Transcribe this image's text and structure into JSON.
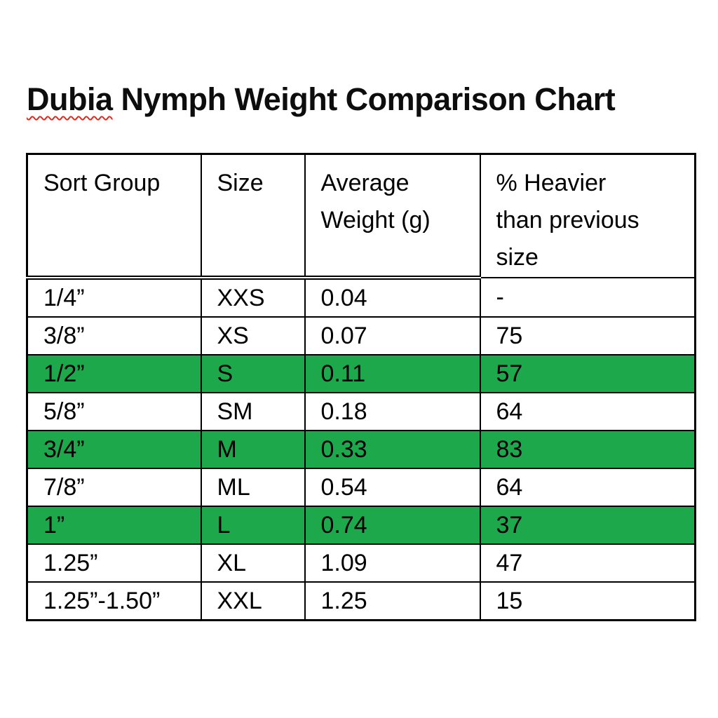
{
  "title": {
    "misspelled_word": "Dubia",
    "rest": " Nymph Weight Comparison Chart",
    "spellcheck_underline": "red-wavy"
  },
  "colors": {
    "highlight_green": "#1ea84c",
    "squiggle_red": "#e02b20",
    "border_black": "#000000",
    "text_black": "#000000",
    "page_background": "#ffffff"
  },
  "table": {
    "columns": [
      "Sort Group",
      "Size",
      "Average Weight (g)",
      "% Heavier than previous size"
    ],
    "rows": [
      {
        "sort_group": "1/4”",
        "size": "XXS",
        "avg_weight": "0.04",
        "pct_heavier": "-",
        "highlighted": false
      },
      {
        "sort_group": "3/8”",
        "size": "XS",
        "avg_weight": "0.07",
        "pct_heavier": "75",
        "highlighted": false
      },
      {
        "sort_group": "1/2”",
        "size": "S",
        "avg_weight": "0.11",
        "pct_heavier": "57",
        "highlighted": true
      },
      {
        "sort_group": "5/8”",
        "size": "SM",
        "avg_weight": "0.18",
        "pct_heavier": "64",
        "highlighted": false
      },
      {
        "sort_group": "3/4”",
        "size": "M",
        "avg_weight": "0.33",
        "pct_heavier": "83",
        "highlighted": true
      },
      {
        "sort_group": "7/8”",
        "size": "ML",
        "avg_weight": "0.54",
        "pct_heavier": "64",
        "highlighted": false
      },
      {
        "sort_group": "1”",
        "size": "L",
        "avg_weight": "0.74",
        "pct_heavier": "37",
        "highlighted": true
      },
      {
        "sort_group": "1.25”",
        "size": "XL",
        "avg_weight": "1.09",
        "pct_heavier": "47",
        "highlighted": false
      },
      {
        "sort_group": "1.25”-1.50”",
        "size": "XXL",
        "avg_weight": "1.25",
        "pct_heavier": "15",
        "highlighted": false
      }
    ]
  }
}
